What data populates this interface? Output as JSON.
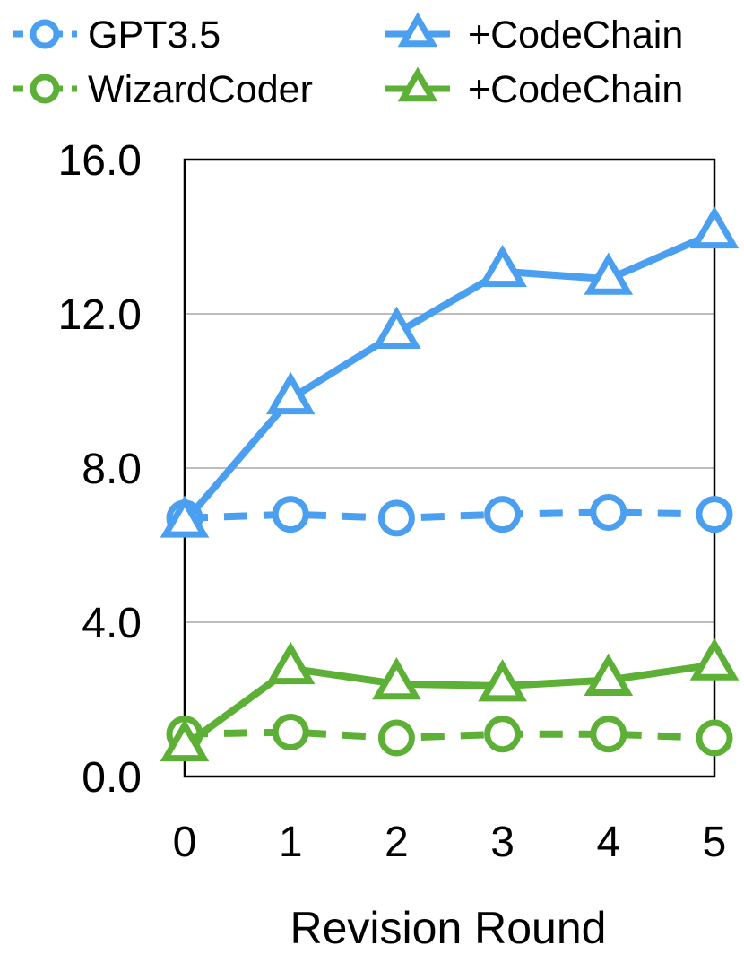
{
  "chart_data": {
    "type": "line",
    "title": "",
    "xlabel": "Revision Round",
    "ylabel": "",
    "x": [
      0,
      1,
      2,
      3,
      4,
      5
    ],
    "xticks": [
      "0",
      "1",
      "2",
      "3",
      "4",
      "5"
    ],
    "yticks": [
      "0.0",
      "4.0",
      "8.0",
      "12.0",
      "16.0"
    ],
    "ylim": [
      0,
      16
    ],
    "grid": "horizontal",
    "legend_position": "top",
    "series": [
      {
        "name": "GPT3.5",
        "color": "#4a9ff0",
        "marker": "circle",
        "dash": "dashed",
        "values": [
          6.7,
          6.8,
          6.7,
          6.8,
          6.85,
          6.8
        ]
      },
      {
        "name": "+CodeChain",
        "color": "#4a9ff0",
        "marker": "triangle",
        "dash": "solid",
        "values": [
          6.6,
          9.8,
          11.5,
          13.1,
          12.9,
          14.1
        ]
      },
      {
        "name": "WizardCoder",
        "color": "#5cb035",
        "marker": "circle",
        "dash": "dashed",
        "values": [
          1.1,
          1.15,
          1.0,
          1.1,
          1.1,
          1.0
        ]
      },
      {
        "name": "+CodeChain",
        "color": "#5cb035",
        "marker": "triangle",
        "dash": "solid",
        "values": [
          0.8,
          2.8,
          2.4,
          2.35,
          2.5,
          2.9
        ]
      }
    ]
  }
}
